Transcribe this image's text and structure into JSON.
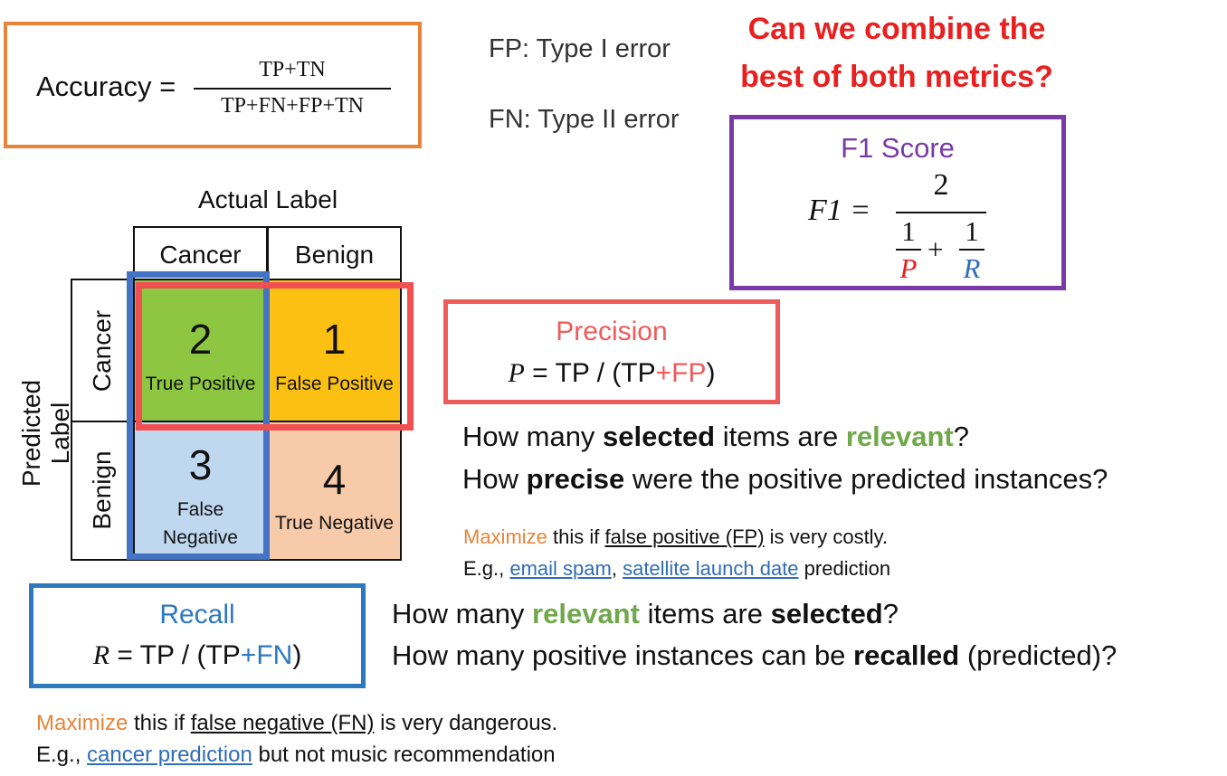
{
  "accuracy": {
    "label": "Accuracy =",
    "numerator": "TP+TN",
    "denominator": "TP+FN+FP+TN"
  },
  "errors": {
    "fp": "FP: Type I error",
    "fn": "FN: Type II error"
  },
  "headline": {
    "line1": "Can we combine the",
    "line2": "best of both metrics?"
  },
  "f1": {
    "title": "F1 Score",
    "lhs": "F1 =",
    "numerator": "2",
    "one": "1",
    "p": "P",
    "r": "R",
    "plus": "+"
  },
  "matrix": {
    "actual_label": "Actual Label",
    "predicted_label": "Predicted Label",
    "col_headers": [
      "Cancer",
      "Benign"
    ],
    "row_headers": [
      "Cancer",
      "Benign"
    ],
    "cells": {
      "tp": {
        "value": "2",
        "label": "True Positive"
      },
      "fp": {
        "value": "1",
        "label": "False Positive"
      },
      "fn": {
        "value": "3",
        "label1": "False",
        "label2": "Negative"
      },
      "tn": {
        "value": "4",
        "label": "True Negative"
      }
    }
  },
  "precision": {
    "title": "Precision",
    "var": "P",
    "formula_mid": " = TP / (TP",
    "formula_plus": "+FP",
    "formula_end": ")",
    "q1": [
      "How many ",
      "selected",
      " items are ",
      "relevant",
      "?"
    ],
    "q2": [
      "How ",
      "precise",
      " were the positive predicted instances?"
    ],
    "note1": [
      "Maximize",
      " this if ",
      "false positive (FP)",
      " is very costly."
    ],
    "note2": [
      "E.g., ",
      "email spam",
      ", ",
      "satellite launch date",
      " prediction"
    ]
  },
  "recall": {
    "title": "Recall",
    "var": "R",
    "formula_mid": " = TP / (TP",
    "formula_plus": "+FN",
    "formula_end": ")",
    "q1": [
      "How many ",
      "relevant",
      " items are ",
      "selected",
      "?"
    ],
    "q2": [
      "How many positive instances can be ",
      "recalled",
      " (predicted)?"
    ],
    "note1": [
      "Maximize",
      " this if ",
      "false negative (FN)",
      " is very dangerous."
    ],
    "note2": [
      "E.g., ",
      "cancer prediction",
      " but not music recommendation"
    ]
  },
  "colors": {
    "accuracy": "#e8843a",
    "f1": "#7a3aa5",
    "precision": "#ef5a5a",
    "recall": "#2e79bd",
    "tp": "#8dc641",
    "fp": "#fbc012",
    "fn": "#bfd7ef",
    "tn": "#f7cba9"
  }
}
